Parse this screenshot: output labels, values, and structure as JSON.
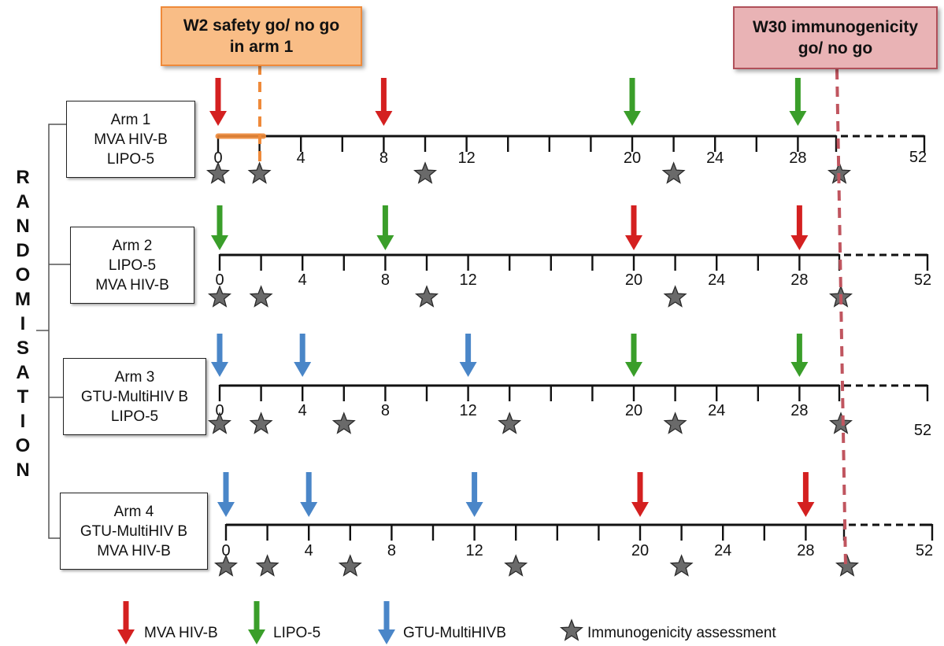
{
  "header": {
    "safety_box": {
      "line1": "W2 safety go/ no go",
      "line2": "in arm 1"
    },
    "immuno_box": {
      "line1": "W30 immunogenicity",
      "line2": "go/ no go"
    }
  },
  "side_label": [
    "R",
    "A",
    "N",
    "D",
    "O",
    "M",
    "I",
    "S",
    "A",
    "T",
    "I",
    "O",
    "N"
  ],
  "colors": {
    "mva": "#d42020",
    "lipo": "#3a9e2a",
    "gtu": "#4a86c8",
    "star": "#6a6a6a",
    "safety": "#ef8a3a",
    "immuno": "#c0555f"
  },
  "arms": [
    {
      "label": [
        "Arm 1",
        "MVA HIV-B",
        "LIPO-5"
      ],
      "tick_labels": [
        "0",
        "4",
        "8",
        "12",
        "20",
        "24",
        "28",
        "52"
      ],
      "injections": [
        {
          "week": 0,
          "product": "mva"
        },
        {
          "week": 8,
          "product": "mva"
        },
        {
          "week": 20,
          "product": "lipo"
        },
        {
          "week": 28,
          "product": "lipo"
        }
      ],
      "assessments": [
        0,
        2,
        10,
        22,
        30
      ]
    },
    {
      "label": [
        "Arm 2",
        "LIPO-5",
        "MVA HIV-B"
      ],
      "tick_labels": [
        "0",
        "4",
        "8",
        "12",
        "20",
        "24",
        "28",
        "52"
      ],
      "injections": [
        {
          "week": 0,
          "product": "lipo"
        },
        {
          "week": 8,
          "product": "lipo"
        },
        {
          "week": 20,
          "product": "mva"
        },
        {
          "week": 28,
          "product": "mva"
        }
      ],
      "assessments": [
        0,
        2,
        10,
        22,
        30
      ]
    },
    {
      "label": [
        "Arm 3",
        "GTU-MultiHIV B",
        "LIPO-5"
      ],
      "tick_labels": [
        "0",
        "4",
        "8",
        "12",
        "20",
        "24",
        "28",
        "52"
      ],
      "injections": [
        {
          "week": 0,
          "product": "gtu"
        },
        {
          "week": 4,
          "product": "gtu"
        },
        {
          "week": 12,
          "product": "gtu"
        },
        {
          "week": 20,
          "product": "lipo"
        },
        {
          "week": 28,
          "product": "lipo"
        }
      ],
      "assessments": [
        0,
        2,
        6,
        14,
        22,
        30
      ]
    },
    {
      "label": [
        "Arm 4",
        "GTU-MultiHIV B",
        "MVA HIV-B"
      ],
      "tick_labels": [
        "0",
        "4",
        "8",
        "12",
        "20",
        "24",
        "28",
        "52"
      ],
      "injections": [
        {
          "week": 0,
          "product": "gtu"
        },
        {
          "week": 4,
          "product": "gtu"
        },
        {
          "week": 12,
          "product": "gtu"
        },
        {
          "week": 20,
          "product": "mva"
        },
        {
          "week": 28,
          "product": "mva"
        }
      ],
      "assessments": [
        0,
        2,
        6,
        14,
        22,
        30
      ]
    }
  ],
  "legend": [
    {
      "key": "mva",
      "label": "MVA HIV-B"
    },
    {
      "key": "lipo",
      "label": "LIPO-5"
    },
    {
      "key": "gtu",
      "label": "GTU-MultiHIVB"
    },
    {
      "key": "star",
      "label": "Immunogenicity assessment"
    }
  ]
}
